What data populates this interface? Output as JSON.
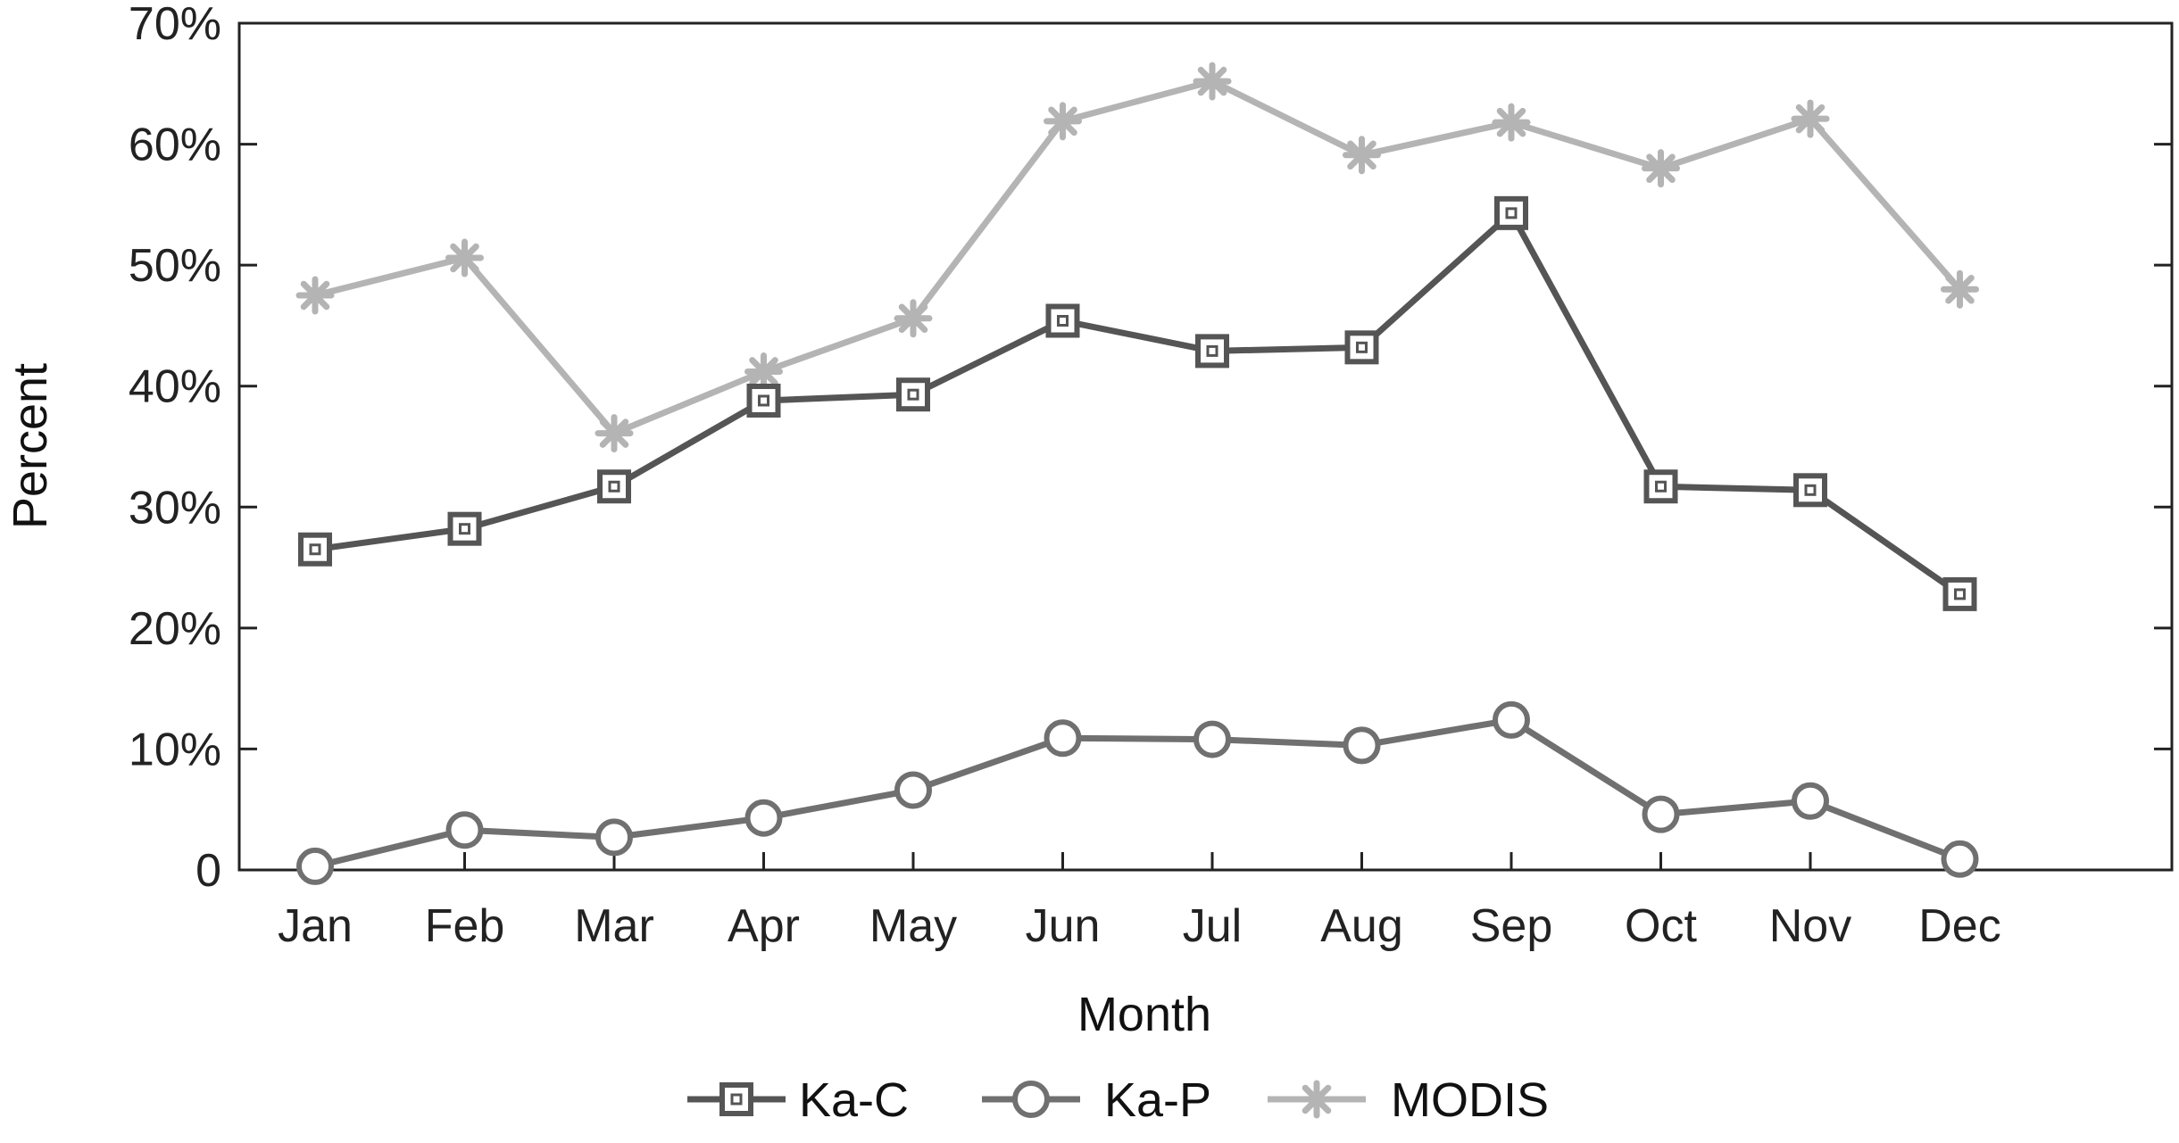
{
  "chart_data": {
    "type": "line",
    "categories": [
      "Jan",
      "Feb",
      "Mar",
      "Apr",
      "May",
      "Jun",
      "Jul",
      "Aug",
      "Sep",
      "Oct",
      "Nov",
      "Dec"
    ],
    "xlabel": "Month",
    "ylabel": "Percent",
    "ylim": [
      0,
      70
    ],
    "yticks": [
      0,
      10,
      20,
      30,
      40,
      50,
      60,
      70
    ],
    "ytick_labels": [
      "0",
      "10%",
      "20%",
      "30%",
      "40%",
      "50%",
      "60%",
      "70%"
    ],
    "grid": false,
    "legend_position": "bottom",
    "series": [
      {
        "name": "Ka-C",
        "marker": "square",
        "color": "#555555",
        "values": [
          26.5,
          28.2,
          31.7,
          38.8,
          39.3,
          45.4,
          42.9,
          43.2,
          54.3,
          31.7,
          31.4,
          22.8
        ]
      },
      {
        "name": "Ka-P",
        "marker": "circle",
        "color": "#707070",
        "values": [
          0.3,
          3.3,
          2.7,
          4.3,
          6.6,
          10.9,
          10.8,
          10.3,
          12.4,
          4.6,
          5.7,
          0.9
        ]
      },
      {
        "name": "MODIS",
        "marker": "asterisk",
        "color": "#b4b4b4",
        "values": [
          47.5,
          50.6,
          36.1,
          41.2,
          45.6,
          61.9,
          65.2,
          59.1,
          61.8,
          58.0,
          62.1,
          48.0
        ]
      }
    ]
  }
}
